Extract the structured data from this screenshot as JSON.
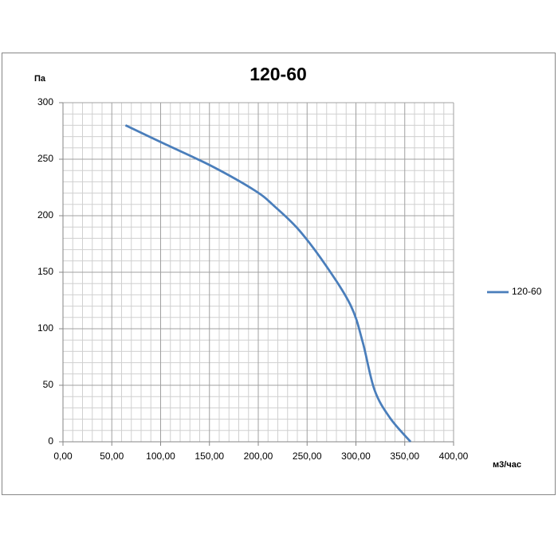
{
  "chart_data": {
    "type": "line",
    "title": "120-60",
    "y_label": "Па",
    "x_label": "м3/час",
    "x": [
      64,
      103,
      152,
      197,
      217,
      242,
      270,
      295,
      307,
      319,
      335,
      356
    ],
    "series": [
      {
        "name": "120-60",
        "color": "#4a7ebb",
        "values": [
          280,
          264,
          244,
          222,
          208,
          187,
          155,
          120,
          88,
          46,
          21,
          0
        ]
      }
    ],
    "xlim": [
      0,
      400
    ],
    "xticks": [
      {
        "value": 0,
        "label": "0,00"
      },
      {
        "value": 50,
        "label": "50,00"
      },
      {
        "value": 100,
        "label": "100,00"
      },
      {
        "value": 150,
        "label": "150,00"
      },
      {
        "value": 200,
        "label": "200,00"
      },
      {
        "value": 250,
        "label": "250,00"
      },
      {
        "value": 300,
        "label": "300,00"
      },
      {
        "value": 350,
        "label": "350,00"
      },
      {
        "value": 400,
        "label": "400,00"
      }
    ],
    "ylim": [
      0,
      300
    ],
    "yticks": [
      0,
      50,
      100,
      150,
      200,
      250,
      300
    ],
    "grid": true,
    "minor_grid": true,
    "legend": "right"
  }
}
